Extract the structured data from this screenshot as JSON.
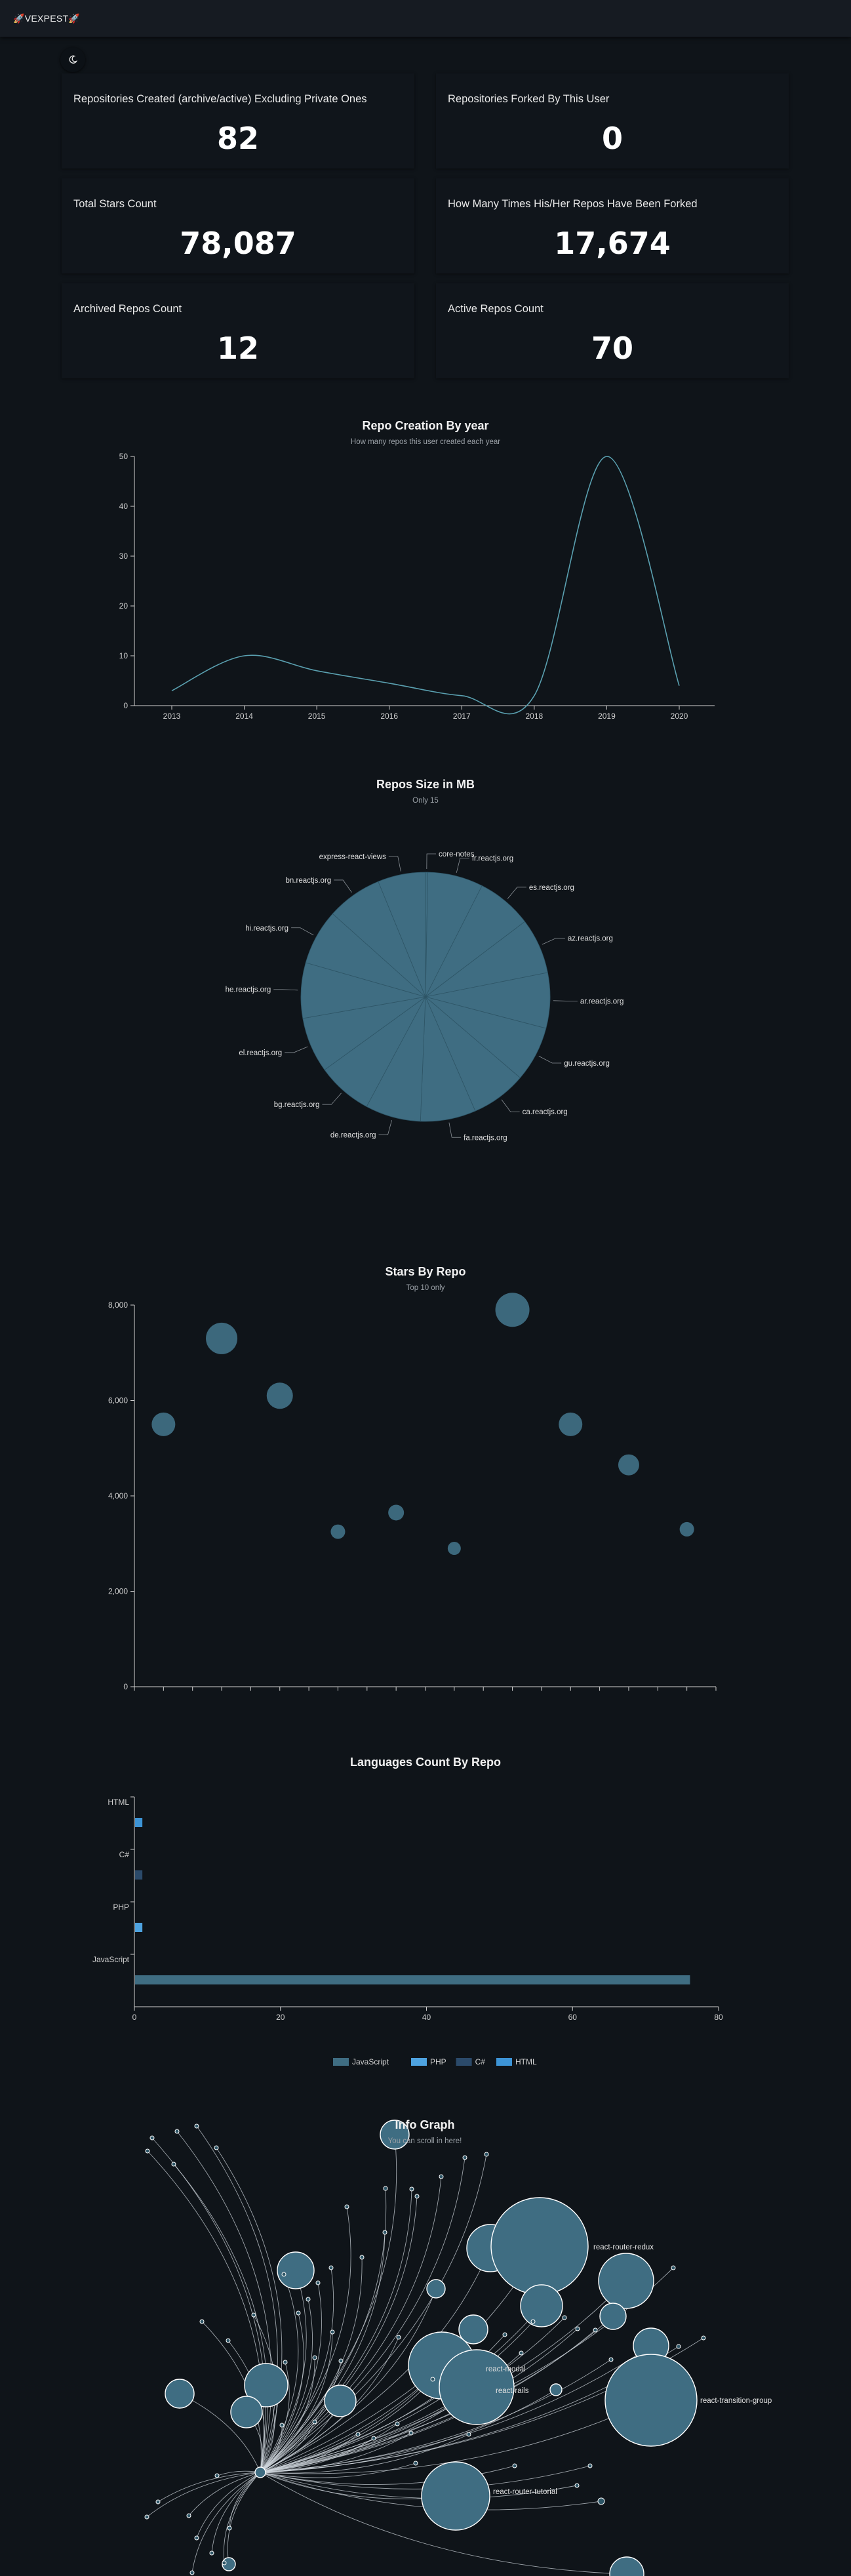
{
  "header": {
    "brand": "🚀VEXPEST🚀"
  },
  "theme_toggle": {
    "icon": "moon-icon"
  },
  "stats": [
    {
      "label": "Repositories Created (archive/active) Excluding Private Ones",
      "value": "82"
    },
    {
      "label": "Repositories Forked By This User",
      "value": "0"
    },
    {
      "label": "Total Stars Count",
      "value": "78,087"
    },
    {
      "label": "How Many Times His/Her Repos Have Been Forked",
      "value": "17,674"
    },
    {
      "label": "Archived Repos Count",
      "value": "12"
    },
    {
      "label": "Active Repos Count",
      "value": "70"
    }
  ],
  "colors": {
    "accent": "#3f6d82",
    "line": "#5aa0b0",
    "php": "#4ea3e0",
    "csharp": "#2b4a6a",
    "html": "#3d94d6",
    "background": "#0f1419"
  },
  "chart_data": [
    {
      "type": "line",
      "title": "Repo Creation By year",
      "subtitle": "How many repos this user created each year",
      "x": [
        2013,
        2014,
        2015,
        2016,
        2017,
        2018,
        2019,
        2020
      ],
      "values": [
        3,
        10,
        7,
        4.5,
        2,
        2,
        50,
        4
      ],
      "ylim": [
        0,
        50
      ],
      "yticks": [
        0,
        10,
        20,
        30,
        40,
        50
      ]
    },
    {
      "type": "pie",
      "title": "Repos Size in MB",
      "subtitle": "Only 15",
      "labels": [
        "core-notes",
        "fr.reactjs.org",
        "es.reactjs.org",
        "az.reactjs.org",
        "ar.reactjs.org",
        "gu.reactjs.org",
        "ca.reactjs.org",
        "fa.reactjs.org",
        "de.reactjs.org",
        "bg.reactjs.org",
        "el.reactjs.org",
        "he.reactjs.org",
        "hi.reactjs.org",
        "bn.reactjs.org",
        "express-react-views"
      ],
      "values": [
        0.3,
        7.2,
        7.2,
        7.2,
        7.2,
        7.2,
        7.2,
        7.2,
        7.2,
        7.2,
        7.2,
        7.2,
        7.2,
        7.2,
        6.2
      ]
    },
    {
      "type": "scatter",
      "title": "Stars By Repo",
      "subtitle": "Top 10 only",
      "values": [
        5500,
        7300,
        6100,
        3250,
        3650,
        2900,
        7900,
        5500,
        4650,
        3300
      ],
      "radii": [
        18,
        24,
        20,
        11,
        12,
        10,
        26,
        18,
        16,
        11
      ],
      "ylim": [
        0,
        8000
      ],
      "yticks": [
        0,
        2000,
        4000,
        6000,
        8000
      ],
      "ytick_labels": [
        "0",
        "2,000",
        "4,000",
        "6,000",
        "8,000"
      ]
    },
    {
      "type": "bar",
      "title": "Languages Count By Repo",
      "categories": [
        "HTML",
        "C#",
        "PHP",
        "JavaScript"
      ],
      "series": [
        {
          "name": "JavaScript",
          "values": [
            0,
            0,
            0,
            76
          ]
        },
        {
          "name": "PHP",
          "values": [
            0,
            0,
            1,
            0
          ]
        },
        {
          "name": "C#",
          "values": [
            0,
            1,
            0,
            0
          ]
        },
        {
          "name": "HTML",
          "values": [
            1,
            0,
            0,
            0
          ]
        }
      ],
      "xlim": [
        0,
        80
      ],
      "xticks": [
        0,
        20,
        40,
        60,
        80
      ]
    }
  ],
  "info_graph": {
    "title": "Info Graph",
    "subtitle": "You can scroll in here!",
    "labels": [
      "react-router-redux",
      "react-modal",
      "react-rails",
      "react-transition-group",
      "react-router-tutorial"
    ]
  }
}
